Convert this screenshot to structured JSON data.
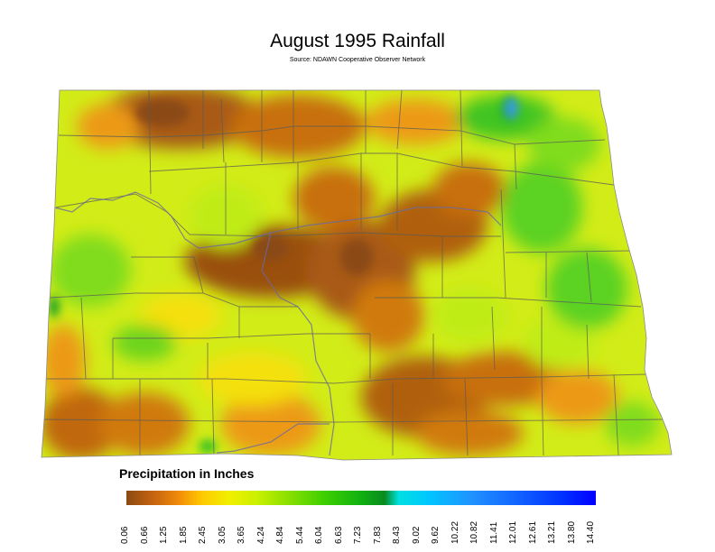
{
  "title": "August 1995 Rainfall",
  "subtitle": "Source: NDAWN Cooperative Observer Network",
  "legend": {
    "title": "Precipitation in Inches",
    "ticks": [
      "0.06",
      "0.66",
      "1.25",
      "1.85",
      "2.45",
      "3.05",
      "3.65",
      "4.24",
      "4.84",
      "5.44",
      "6.04",
      "6.63",
      "7.23",
      "7.83",
      "8.43",
      "9.02",
      "9.62",
      "10.22",
      "10.82",
      "11.41",
      "12.01",
      "12.61",
      "13.21",
      "13.80",
      "14.40"
    ],
    "colors": [
      "#8a4a12",
      "#c8650f",
      "#f08a0a",
      "#ffc800",
      "#f0f000",
      "#c8f000",
      "#8ee000",
      "#40d000",
      "#10b010",
      "#0a8a1e",
      "#00e0e0",
      "#00c8ff",
      "#2090ff",
      "#1060ff",
      "#0030ff",
      "#0000ff"
    ]
  },
  "map": {
    "palette": {
      "dry": "#a85a14",
      "brown": "#c8700e",
      "orange": "#ec9a18",
      "yellow": "#f4e010",
      "lime": "#c0ec14",
      "green": "#5cd220",
      "darkgreen": "#1ea028",
      "blue": "#3a9ce8"
    }
  }
}
